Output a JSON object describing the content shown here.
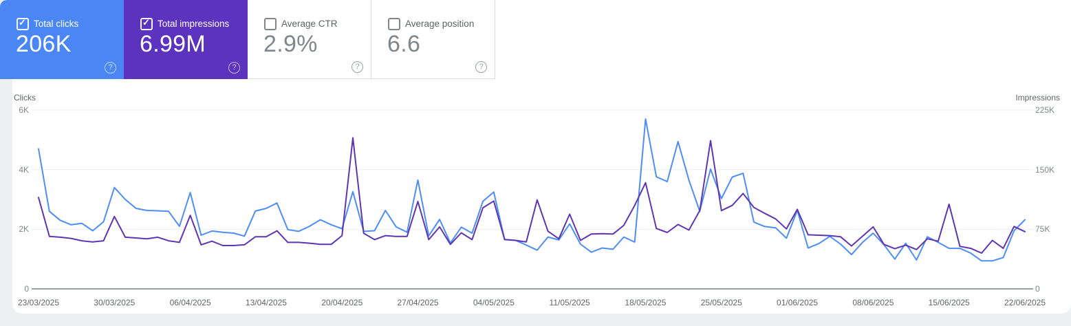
{
  "cards": [
    {
      "id": "total-clicks",
      "label": "Total clicks",
      "value": "206K",
      "checked": true,
      "bg": "#4a87f5",
      "is_white": false,
      "help_icon": "circled-question-mark"
    },
    {
      "id": "total-impressions",
      "label": "Total impressions",
      "value": "6.99M",
      "checked": true,
      "bg": "#5c33be",
      "is_white": false,
      "help_icon": "circled-question-mark"
    },
    {
      "id": "average-ctr",
      "label": "Average CTR",
      "value": "2.9%",
      "checked": false,
      "bg": "#ffffff",
      "is_white": true,
      "help_icon": "circled-question-mark"
    },
    {
      "id": "average-position",
      "label": "Average position",
      "value": "6.6",
      "checked": false,
      "bg": "#ffffff",
      "is_white": true,
      "help_icon": "circled-question-mark"
    }
  ],
  "colors": {
    "clicks_line": "#4e8df6",
    "impressions_line": "#5e35b1",
    "gridline": "#eceef0",
    "baseline": "#9aa0a6",
    "tick_text": "#80868b",
    "date_text": "#5f6368",
    "card_divider": "#dadce0"
  },
  "chart_data": {
    "type": "line",
    "x_unit": "day",
    "num_days": 92,
    "date_range": [
      "23/03/2025",
      "22/06/2025"
    ],
    "x_tick_labels": [
      "23/03/2025",
      "30/03/2025",
      "06/04/2025",
      "13/04/2025",
      "20/04/2025",
      "27/04/2025",
      "04/05/2025",
      "11/05/2025",
      "18/05/2025",
      "25/05/2025",
      "01/06/2025",
      "08/06/2025",
      "15/06/2025",
      "22/06/2025"
    ],
    "x_tick_day_indices": [
      0,
      7,
      14,
      21,
      28,
      35,
      42,
      49,
      56,
      63,
      70,
      77,
      84,
      91
    ],
    "left_axis": {
      "title": "Clicks",
      "max": 6000,
      "ticks": [
        {
          "label": "6K",
          "value": 6000
        },
        {
          "label": "4K",
          "value": 4000
        },
        {
          "label": "2K",
          "value": 2000
        },
        {
          "label": "0",
          "value": 0
        }
      ]
    },
    "right_axis": {
      "title": "Impressions",
      "max": 225000,
      "ticks": [
        {
          "label": "225K",
          "value": 225000
        },
        {
          "label": "150K",
          "value": 150000
        },
        {
          "label": "75K",
          "value": 75000
        },
        {
          "label": "0",
          "value": 0
        }
      ]
    },
    "grid": true,
    "legend": "none",
    "series": [
      {
        "name": "Clicks",
        "axis": "left",
        "color": "#4e8df6",
        "values": [
          4700,
          2600,
          2300,
          2150,
          2200,
          1950,
          2250,
          3400,
          3000,
          2700,
          2630,
          2620,
          2600,
          2100,
          3230,
          1800,
          1940,
          1900,
          1870,
          1770,
          2610,
          2700,
          2880,
          1990,
          1930,
          2100,
          2320,
          2150,
          2020,
          3260,
          1930,
          1950,
          2630,
          2080,
          1900,
          3650,
          1780,
          2330,
          1540,
          2070,
          1870,
          2940,
          3250,
          1660,
          1630,
          1470,
          1300,
          1740,
          1640,
          2180,
          1500,
          1230,
          1370,
          1330,
          1740,
          1570,
          5700,
          3760,
          3600,
          4940,
          3650,
          2600,
          4020,
          3030,
          3750,
          3880,
          2240,
          2090,
          2050,
          1700,
          2630,
          1370,
          1520,
          1760,
          1500,
          1150,
          1550,
          1870,
          1480,
          1000,
          1530,
          970,
          1750,
          1560,
          1360,
          1360,
          1200,
          940,
          940,
          1050,
          1950,
          2320
        ]
      },
      {
        "name": "Impressions",
        "axis": "right",
        "color": "#5e35b1",
        "values": [
          115000,
          66000,
          65000,
          63500,
          60500,
          59000,
          60500,
          91000,
          65000,
          64000,
          63000,
          65000,
          60500,
          58500,
          92500,
          55500,
          60000,
          54500,
          54500,
          55500,
          65500,
          65500,
          73000,
          58500,
          58500,
          57500,
          56000,
          56000,
          67000,
          190000,
          70000,
          62000,
          67000,
          66000,
          66000,
          110000,
          62000,
          78000,
          56000,
          70500,
          62000,
          102000,
          110500,
          62000,
          61000,
          59000,
          112000,
          72500,
          63000,
          94000,
          61000,
          69000,
          69500,
          69000,
          80000,
          105000,
          133500,
          76000,
          71000,
          81000,
          74000,
          98500,
          186500,
          98500,
          105000,
          120000,
          102500,
          95000,
          88000,
          75500,
          100000,
          68000,
          67500,
          67000,
          65500,
          54000,
          66000,
          78000,
          56000,
          50500,
          55000,
          49500,
          63000,
          60000,
          106500,
          53500,
          51000,
          45000,
          61000,
          51000,
          78500,
          72000
        ]
      }
    ]
  }
}
